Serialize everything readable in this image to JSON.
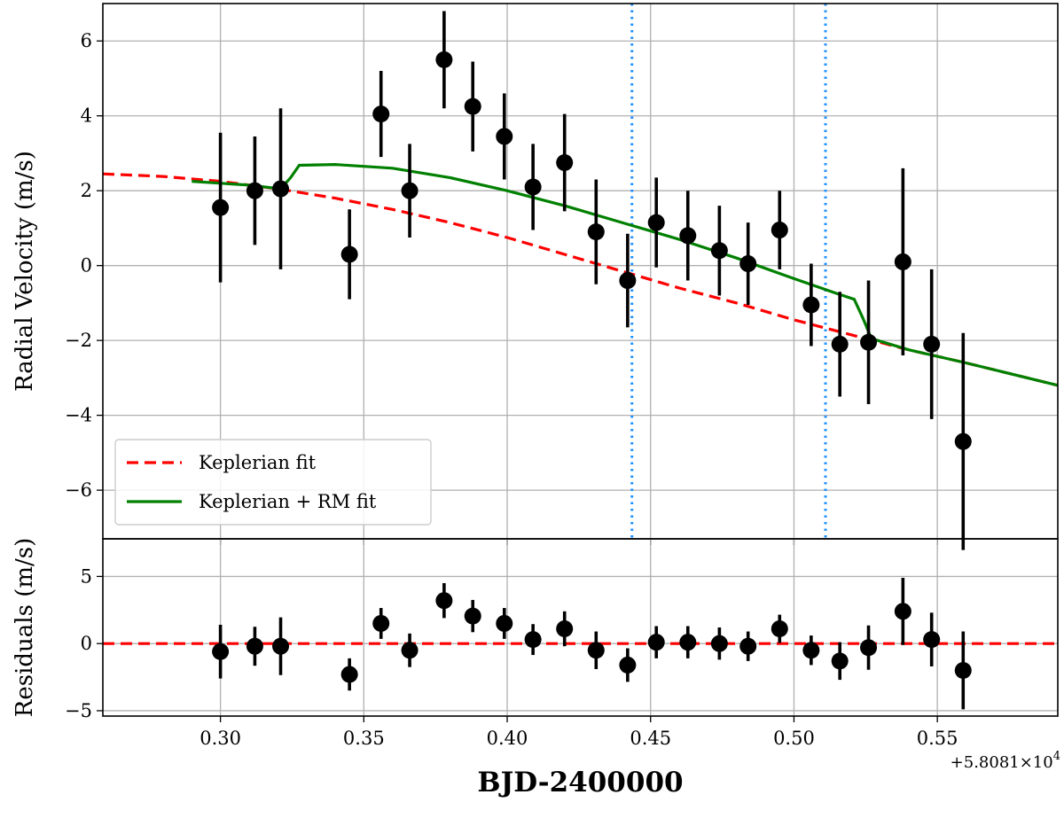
{
  "chart_data": [
    {
      "type": "scatter",
      "panel": "main",
      "ylabel": "Radial Velocity   (m/s)",
      "xlim": [
        0.259,
        0.592
      ],
      "ylim": [
        -7.3,
        7.0
      ],
      "x_ticks": [
        "0.30",
        "0.35",
        "0.40",
        "0.45",
        "0.50",
        "0.55"
      ],
      "y_ticks": [
        "−6",
        "−4",
        "−2",
        "0",
        "2",
        "4",
        "6"
      ],
      "grid": true,
      "legend_position": "bottom-left",
      "legend": [
        "Keplerian fit",
        "Keplerian + RM fit"
      ],
      "transit_lines_x": [
        0.4435,
        0.511
      ],
      "observations": {
        "x": [
          0.3,
          0.312,
          0.321,
          0.345,
          0.356,
          0.366,
          0.378,
          0.388,
          0.399,
          0.409,
          0.42,
          0.431,
          0.442,
          0.452,
          0.463,
          0.474,
          0.484,
          0.495,
          0.506,
          0.516,
          0.526,
          0.538,
          0.548,
          0.559
        ],
        "y": [
          1.55,
          2.0,
          2.05,
          0.3,
          4.05,
          2.0,
          5.5,
          4.25,
          3.45,
          2.1,
          2.75,
          0.9,
          -0.4,
          1.15,
          0.8,
          0.4,
          0.05,
          0.95,
          -1.05,
          -2.1,
          -2.05,
          0.1,
          -2.1,
          -4.7
        ],
        "err": [
          2.0,
          1.45,
          2.15,
          1.2,
          1.15,
          1.25,
          1.3,
          1.2,
          1.15,
          1.15,
          1.3,
          1.4,
          1.25,
          1.2,
          1.2,
          1.2,
          1.1,
          1.05,
          1.1,
          1.4,
          1.65,
          2.5,
          2.0,
          2.9
        ]
      },
      "series": [
        {
          "name": "Keplerian fit",
          "style": "dashed",
          "color": "#ff0000",
          "x": [
            0.259,
            0.28,
            0.3,
            0.32,
            0.34,
            0.36,
            0.38,
            0.4,
            0.42,
            0.44,
            0.46,
            0.48,
            0.5,
            0.52,
            0.54,
            0.56,
            0.592
          ],
          "y": [
            2.45,
            2.38,
            2.25,
            2.05,
            1.8,
            1.5,
            1.15,
            0.75,
            0.3,
            -0.15,
            -0.6,
            -1.0,
            -1.45,
            -1.85,
            -2.25,
            -2.6,
            -3.2
          ]
        },
        {
          "name": "Keplerian + RM fit",
          "style": "solid",
          "color": "#008000",
          "x": [
            0.29,
            0.31,
            0.321,
            0.3245,
            0.3275,
            0.34,
            0.36,
            0.38,
            0.4,
            0.42,
            0.44,
            0.46,
            0.48,
            0.5,
            0.515,
            0.521,
            0.524,
            0.527,
            0.54,
            0.56,
            0.592
          ],
          "y": [
            2.25,
            2.15,
            2.05,
            2.35,
            2.68,
            2.7,
            2.6,
            2.35,
            2.0,
            1.6,
            1.15,
            0.7,
            0.2,
            -0.35,
            -0.75,
            -0.9,
            -1.4,
            -1.95,
            -2.25,
            -2.6,
            -3.2
          ]
        }
      ]
    },
    {
      "type": "scatter",
      "panel": "residuals",
      "ylabel": "Residuals (m/s)",
      "xlabel": "BJD-2400000",
      "x_offset_label": "+5.8081×10",
      "x_offset_exp": "4",
      "xlim": [
        0.259,
        0.592
      ],
      "ylim": [
        -5.4,
        7.8
      ],
      "x_ticks": [
        "0.30",
        "0.35",
        "0.40",
        "0.45",
        "0.50",
        "0.55"
      ],
      "y_ticks": [
        "−5",
        "0",
        "5"
      ],
      "grid": true,
      "zero_line": {
        "y": 0,
        "style": "dashed",
        "color": "#ff0000"
      },
      "observations": {
        "x": [
          0.3,
          0.312,
          0.321,
          0.345,
          0.356,
          0.366,
          0.378,
          0.388,
          0.399,
          0.409,
          0.42,
          0.431,
          0.442,
          0.452,
          0.463,
          0.474,
          0.484,
          0.495,
          0.506,
          0.516,
          0.526,
          0.538,
          0.548,
          0.559
        ],
        "y": [
          -0.6,
          -0.2,
          -0.2,
          -2.3,
          1.5,
          -0.5,
          3.2,
          2.05,
          1.5,
          0.3,
          1.1,
          -0.5,
          -1.6,
          0.1,
          0.1,
          0.0,
          -0.2,
          1.1,
          -0.5,
          -1.3,
          -0.3,
          2.4,
          0.3,
          -2.0
        ],
        "err": [
          2.0,
          1.45,
          2.15,
          1.2,
          1.15,
          1.25,
          1.3,
          1.2,
          1.15,
          1.15,
          1.3,
          1.4,
          1.25,
          1.2,
          1.2,
          1.2,
          1.1,
          1.05,
          1.1,
          1.4,
          1.65,
          2.5,
          2.0,
          2.9
        ]
      }
    }
  ]
}
